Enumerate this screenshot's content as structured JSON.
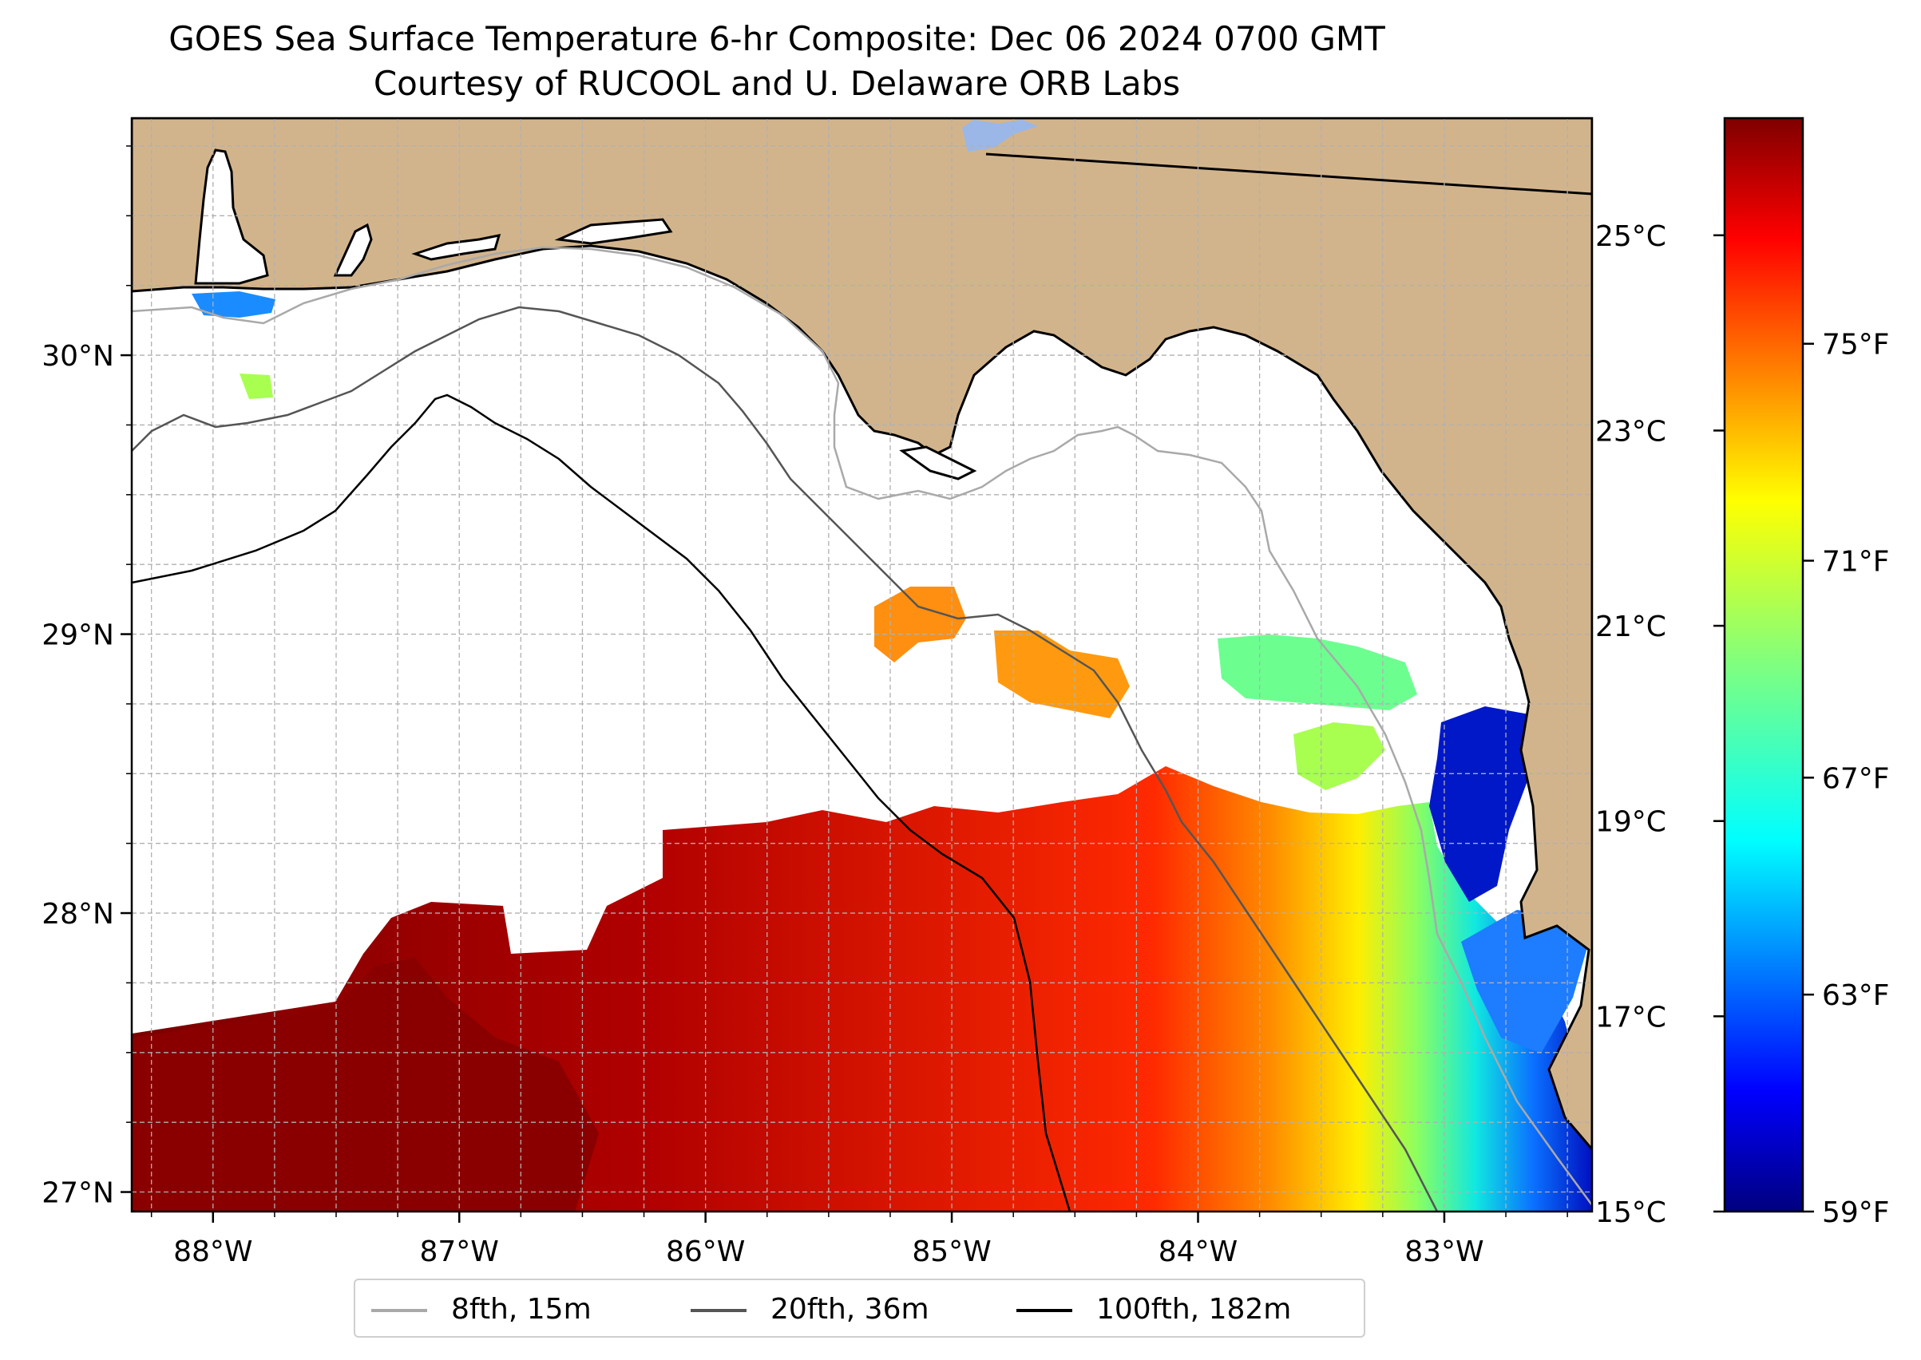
{
  "title": {
    "line1": "GOES Sea Surface Temperature 6-hr Composite: Dec 06 2024 0700 GMT",
    "line2": "Courtesy of RUCOOL and U. Delaware ORB Labs"
  },
  "map": {
    "lon_range": [
      -88.33,
      -82.4
    ],
    "lat_range": [
      26.93,
      30.85
    ],
    "x_ticks": [
      "88°W",
      "87°W",
      "86°W",
      "85°W",
      "84°W",
      "83°W"
    ],
    "y_ticks": [
      "27°N",
      "28°N",
      "29°N",
      "30°N"
    ],
    "colors": {
      "land": "#d2b48c",
      "coast": "#000000",
      "gridline": "#b0b0b0",
      "isobath_8fth": "#a9a9a9",
      "isobath_20fth": "#555555",
      "isobath_100fth": "#000000",
      "lake": "#9ab7e8"
    }
  },
  "colorbar": {
    "colormap": "jet",
    "celsius_ticks": [
      "25°C",
      "23°C",
      "21°C",
      "19°C",
      "17°C",
      "15°C"
    ],
    "fahrenheit_ticks": [
      "75°F",
      "71°F",
      "67°F",
      "63°F",
      "59°F"
    ],
    "range_c": [
      15,
      26.2
    ]
  },
  "legend": {
    "items": [
      {
        "label": "8fth, 15m",
        "color": "#a9a9a9"
      },
      {
        "label": "20fth, 36m",
        "color": "#555555"
      },
      {
        "label": "100fth, 182m",
        "color": "#000000"
      }
    ]
  }
}
